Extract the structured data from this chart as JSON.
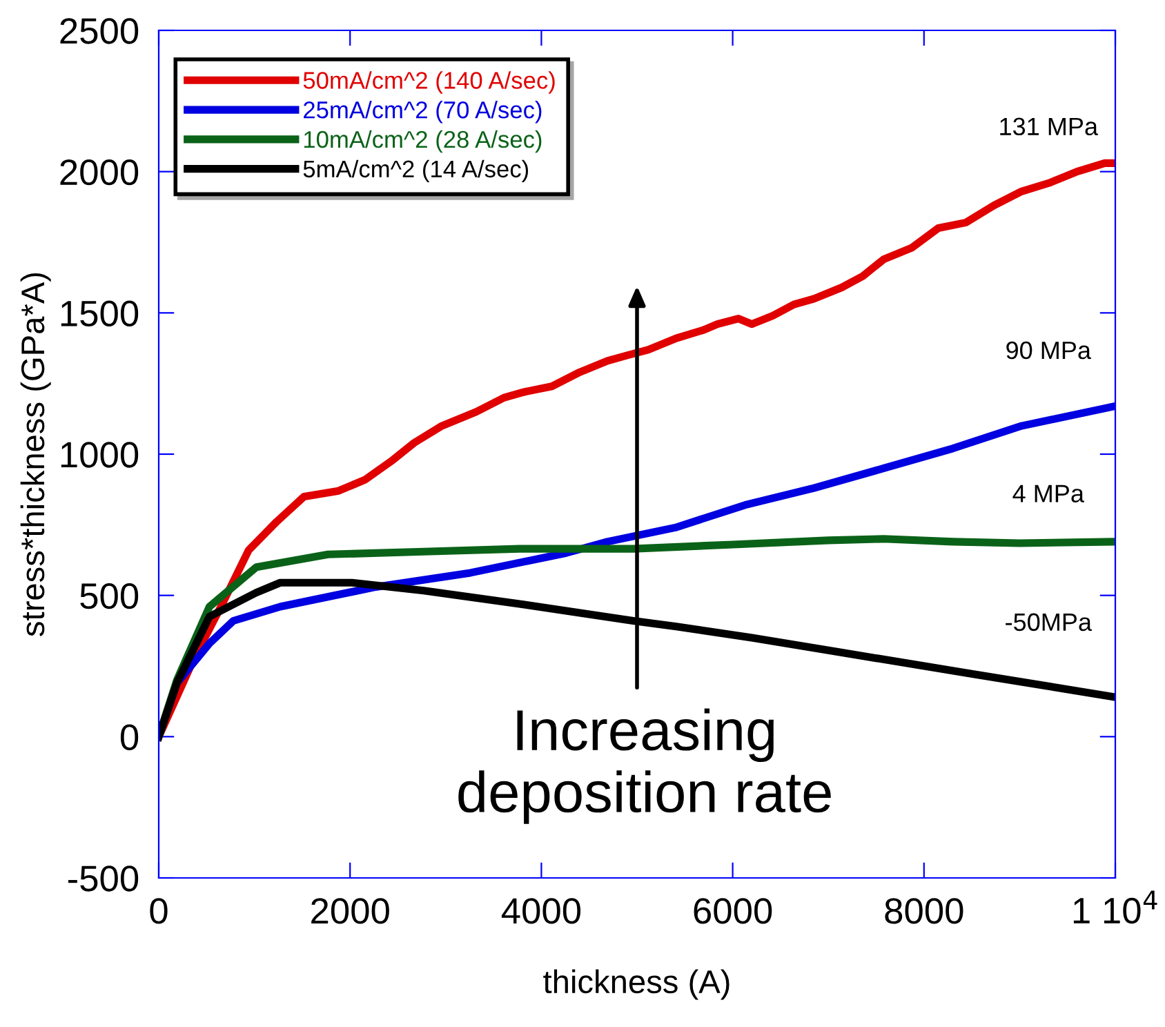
{
  "chart_data": {
    "type": "line",
    "xlabel": "thickness (A)",
    "ylabel": "stress*thickness (GPa*A)",
    "xlim": [
      0,
      10000
    ],
    "ylim": [
      -500,
      2500
    ],
    "xticks": [
      0,
      2000,
      4000,
      6000,
      8000,
      {
        "value": 10000,
        "label": "1 10$^{4}$"
      }
    ],
    "yticks": [
      -500,
      0,
      500,
      1000,
      1500,
      2000,
      2500
    ],
    "grid": false,
    "legend": "top left",
    "line_style": "solid",
    "marker": "none",
    "series": [
      {
        "name": "50mA/cm^2 (140 A/sec)",
        "color": "#e00000",
        "x": [
          0,
          360,
          650,
          940,
          1230,
          1520,
          1880,
          2160,
          2450,
          2670,
          2960,
          3320,
          3610,
          3820,
          4110,
          4400,
          4690,
          4900,
          5120,
          5410,
          5700,
          5840,
          6060,
          6200,
          6420,
          6640,
          6850,
          7140,
          7360,
          7580,
          7870,
          8150,
          8440,
          8730,
          9020,
          9310,
          9600,
          9890,
          10000
        ],
        "values": [
          0,
          270,
          460,
          660,
          760,
          850,
          870,
          910,
          980,
          1040,
          1100,
          1150,
          1200,
          1220,
          1240,
          1290,
          1330,
          1350,
          1370,
          1410,
          1440,
          1460,
          1480,
          1460,
          1490,
          1530,
          1550,
          1590,
          1630,
          1690,
          1730,
          1800,
          1820,
          1880,
          1930,
          1960,
          2000,
          2030,
          2030
        ]
      },
      {
        "name": "25mA/cm^2 (70 A/sec)",
        "color": "#0000e0",
        "x": [
          0,
          190,
          530,
          780,
          1270,
          2270,
          3260,
          4260,
          4690,
          5400,
          6130,
          6850,
          7580,
          8300,
          9020,
          10000
        ],
        "values": [
          0,
          190,
          330,
          410,
          460,
          530,
          580,
          650,
          690,
          740,
          820,
          880,
          950,
          1020,
          1100,
          1170
        ]
      },
      {
        "name": "10mA/cm^2 (28 A/sec)",
        "color": "#0a6218",
        "x": [
          0,
          190,
          530,
          1020,
          1770,
          2770,
          3770,
          4960,
          6000,
          7000,
          7580,
          8300,
          9000,
          10000
        ],
        "values": [
          0,
          200,
          460,
          600,
          645,
          655,
          665,
          665,
          680,
          695,
          700,
          690,
          685,
          690
        ]
      },
      {
        "name": "5mA/cm^2 (14 A/sec)",
        "color": "#000000",
        "x": [
          0,
          190,
          530,
          1020,
          1270,
          2020,
          2770,
          3770,
          4960,
          5410,
          6200,
          7100,
          8540,
          10000
        ],
        "values": [
          0,
          190,
          425,
          510,
          545,
          545,
          517,
          470,
          410,
          390,
          350,
          300,
          220,
          140
        ]
      }
    ],
    "annotations": [
      "131 MPa",
      "90 MPa",
      "4 MPa",
      "-50MPa",
      "Increasing\ndeposition rate"
    ]
  }
}
